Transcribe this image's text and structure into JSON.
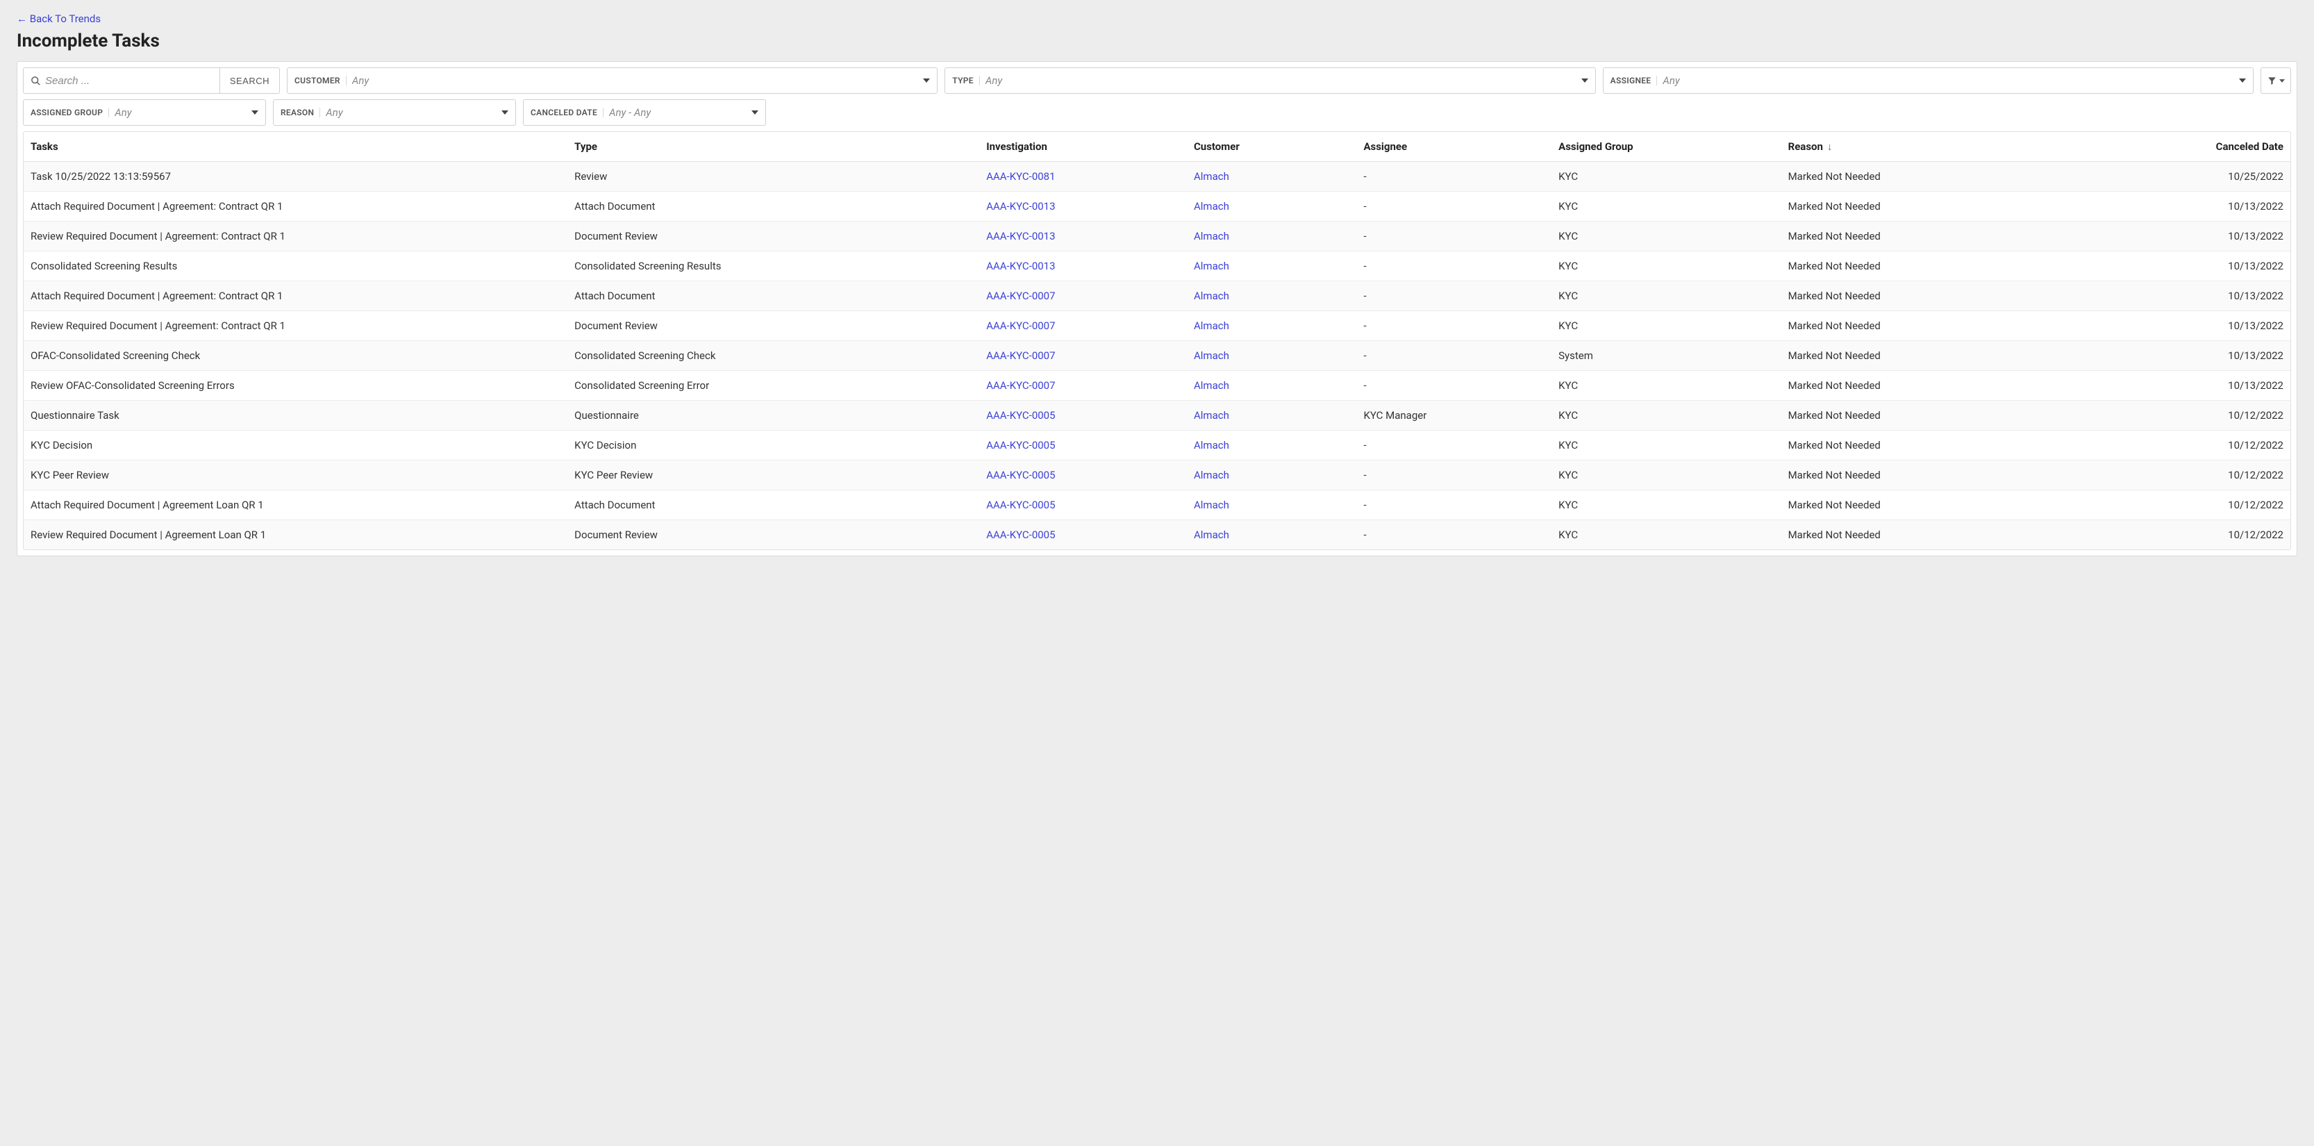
{
  "back_link": "← Back To Trends",
  "page_title": "Incomplete Tasks",
  "search": {
    "placeholder": "Search ...",
    "button": "SEARCH"
  },
  "filters_row1": [
    {
      "label": "CUSTOMER",
      "value": "Any"
    },
    {
      "label": "TYPE",
      "value": "Any"
    },
    {
      "label": "ASSIGNEE",
      "value": "Any"
    }
  ],
  "filters_row2": [
    {
      "label": "ASSIGNED GROUP",
      "value": "Any"
    },
    {
      "label": "REASON",
      "value": "Any"
    },
    {
      "label": "CANCELED DATE",
      "value": "Any - Any"
    }
  ],
  "columns": {
    "tasks": "Tasks",
    "type": "Type",
    "investigation": "Investigation",
    "customer": "Customer",
    "assignee": "Assignee",
    "assigned_group": "Assigned Group",
    "reason": "Reason",
    "canceled_date": "Canceled Date"
  },
  "sort_indicator": "↓",
  "rows": [
    {
      "task": "Task 10/25/2022 13:13:59567",
      "type": "Review",
      "investigation": "AAA-KYC-0081",
      "customer": "Almach",
      "assignee": "-",
      "group": "KYC",
      "reason": "Marked Not Needed",
      "date": "10/25/2022"
    },
    {
      "task": "Attach Required Document | Agreement: Contract QR 1",
      "type": "Attach Document",
      "investigation": "AAA-KYC-0013",
      "customer": "Almach",
      "assignee": "-",
      "group": "KYC",
      "reason": "Marked Not Needed",
      "date": "10/13/2022"
    },
    {
      "task": "Review Required Document | Agreement: Contract QR 1",
      "type": "Document Review",
      "investigation": "AAA-KYC-0013",
      "customer": "Almach",
      "assignee": "-",
      "group": "KYC",
      "reason": "Marked Not Needed",
      "date": "10/13/2022"
    },
    {
      "task": "Consolidated Screening Results",
      "type": "Consolidated Screening Results",
      "investigation": "AAA-KYC-0013",
      "customer": "Almach",
      "assignee": "-",
      "group": "KYC",
      "reason": "Marked Not Needed",
      "date": "10/13/2022"
    },
    {
      "task": "Attach Required Document | Agreement: Contract QR 1",
      "type": "Attach Document",
      "investigation": "AAA-KYC-0007",
      "customer": "Almach",
      "assignee": "-",
      "group": "KYC",
      "reason": "Marked Not Needed",
      "date": "10/13/2022"
    },
    {
      "task": "Review Required Document | Agreement: Contract QR 1",
      "type": "Document Review",
      "investigation": "AAA-KYC-0007",
      "customer": "Almach",
      "assignee": "-",
      "group": "KYC",
      "reason": "Marked Not Needed",
      "date": "10/13/2022"
    },
    {
      "task": "OFAC-Consolidated Screening Check",
      "type": "Consolidated Screening Check",
      "investigation": "AAA-KYC-0007",
      "customer": "Almach",
      "assignee": "-",
      "group": "System",
      "reason": "Marked Not Needed",
      "date": "10/13/2022"
    },
    {
      "task": "Review OFAC-Consolidated Screening Errors",
      "type": "Consolidated Screening Error",
      "investigation": "AAA-KYC-0007",
      "customer": "Almach",
      "assignee": "-",
      "group": "KYC",
      "reason": "Marked Not Needed",
      "date": "10/13/2022"
    },
    {
      "task": "Questionnaire Task",
      "type": "Questionnaire",
      "investigation": "AAA-KYC-0005",
      "customer": "Almach",
      "assignee": "KYC Manager",
      "group": "KYC",
      "reason": "Marked Not Needed",
      "date": "10/12/2022"
    },
    {
      "task": "KYC Decision",
      "type": "KYC Decision",
      "investigation": "AAA-KYC-0005",
      "customer": "Almach",
      "assignee": "-",
      "group": "KYC",
      "reason": "Marked Not Needed",
      "date": "10/12/2022"
    },
    {
      "task": "KYC Peer Review",
      "type": "KYC Peer Review",
      "investigation": "AAA-KYC-0005",
      "customer": "Almach",
      "assignee": "-",
      "group": "KYC",
      "reason": "Marked Not Needed",
      "date": "10/12/2022"
    },
    {
      "task": "Attach Required Document | Agreement Loan QR   1",
      "type": "Attach Document",
      "investigation": "AAA-KYC-0005",
      "customer": "Almach",
      "assignee": "-",
      "group": "KYC",
      "reason": "Marked Not Needed",
      "date": "10/12/2022"
    },
    {
      "task": "Review Required Document | Agreement Loan QR   1",
      "type": "Document Review",
      "investigation": "AAA-KYC-0005",
      "customer": "Almach",
      "assignee": "-",
      "group": "KYC",
      "reason": "Marked Not Needed",
      "date": "10/12/2022"
    }
  ],
  "colors": {
    "link": "#3c41d6",
    "page_bg": "#ededed",
    "border": "#d0d0d0",
    "row_alt": "#fafafa"
  }
}
